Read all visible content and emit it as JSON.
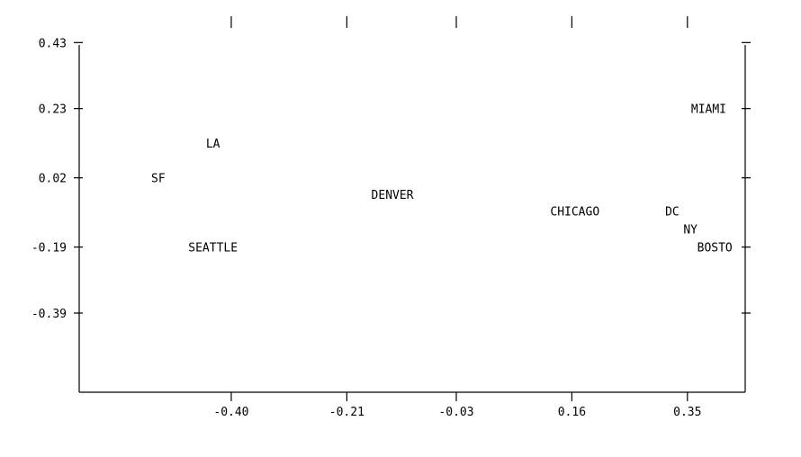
{
  "colors": {
    "background": "#ffffff",
    "ink": "#000000"
  },
  "chart_data": {
    "type": "scatter",
    "title": "",
    "xlabel": "",
    "ylabel": "",
    "xlim": [
      -0.65,
      0.445
    ],
    "ylim": [
      -0.63,
      0.51
    ],
    "x_ticks": [
      -0.4,
      -0.21,
      -0.03,
      0.16,
      0.35
    ],
    "x_tick_labels": [
      "-0.40",
      "-0.21",
      "-0.03",
      "0.16",
      "0.35"
    ],
    "y_ticks": [
      0.43,
      0.23,
      0.02,
      -0.19,
      -0.39
    ],
    "y_tick_labels": [
      "0.43",
      "0.23",
      "0.02",
      "-0.19",
      "-0.39"
    ],
    "grid": false,
    "legend": "none",
    "marker": "text-label",
    "points": [
      {
        "label": "LA",
        "x": -0.43,
        "y": 0.125
      },
      {
        "label": "SF",
        "x": -0.52,
        "y": 0.02
      },
      {
        "label": "SEATTLE",
        "x": -0.43,
        "y": -0.19
      },
      {
        "label": "DENVER",
        "x": -0.135,
        "y": -0.03
      },
      {
        "label": "CHICAGO",
        "x": 0.165,
        "y": -0.08
      },
      {
        "label": "DC",
        "x": 0.325,
        "y": -0.08
      },
      {
        "label": "NY",
        "x": 0.355,
        "y": -0.135
      },
      {
        "label": "BOSTO",
        "x": 0.395,
        "y": -0.19
      },
      {
        "label": "MIAMI",
        "x": 0.385,
        "y": 0.23
      }
    ]
  }
}
